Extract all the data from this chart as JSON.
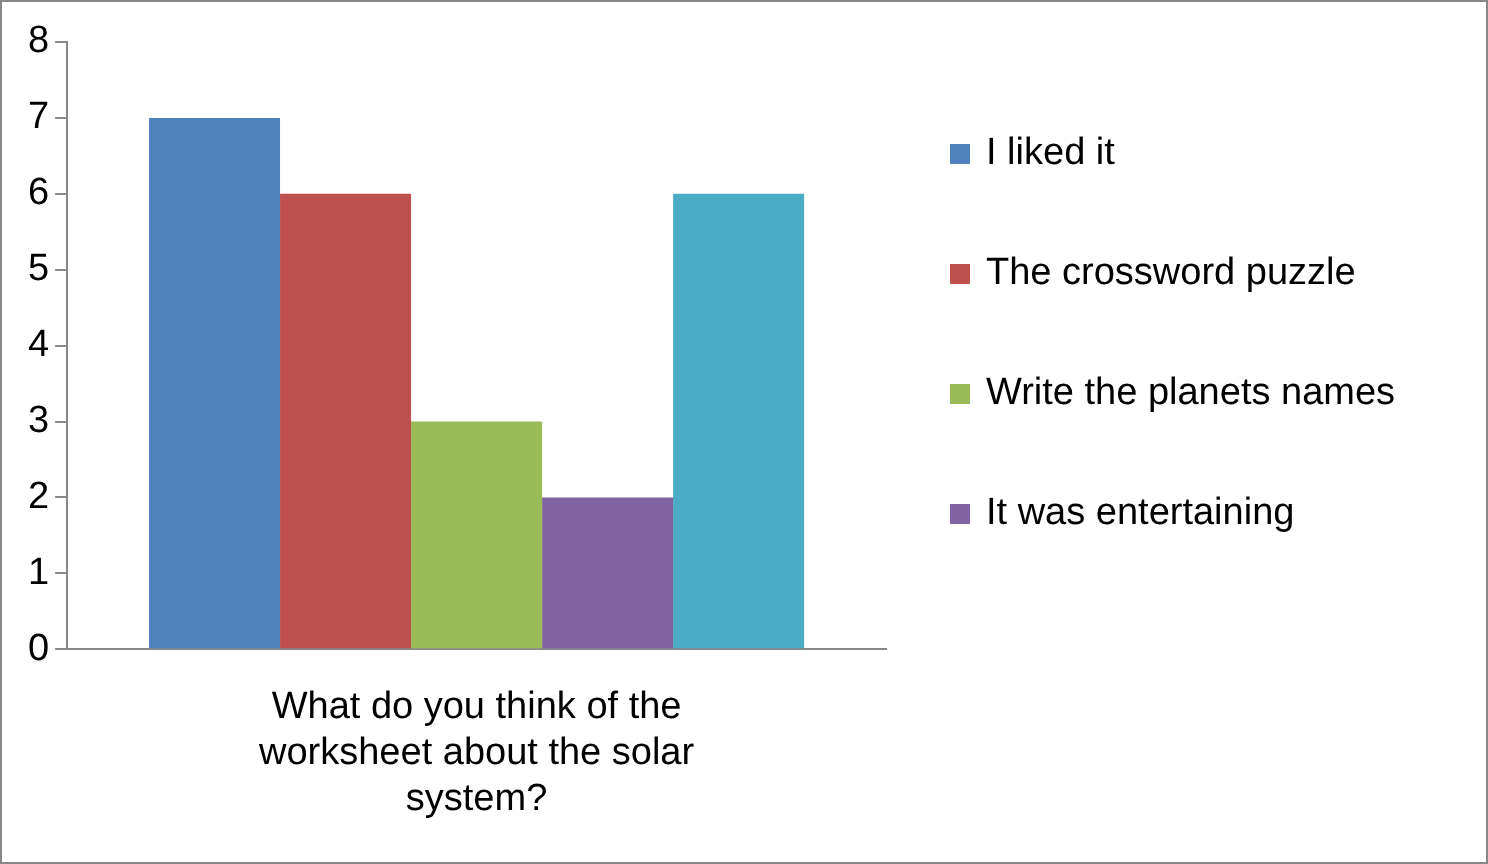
{
  "chart_data": {
    "type": "bar",
    "categories": [
      "What do you think of the worksheet about the solar system?"
    ],
    "series": [
      {
        "name": "I liked it",
        "color": "#4f81bd",
        "values": [
          7
        ]
      },
      {
        "name": "The crossword puzzle",
        "color": "#c0504d",
        "values": [
          6
        ]
      },
      {
        "name": "Write the planets names",
        "color": "#9bbb59",
        "values": [
          3
        ]
      },
      {
        "name": "It was entertaining",
        "color": "#8064a2",
        "values": [
          2
        ]
      },
      {
        "color": "#4bacc6",
        "values": [
          6
        ]
      }
    ],
    "ylim": [
      0,
      8
    ],
    "yticks": [
      0,
      1,
      2,
      3,
      4,
      5,
      6,
      7,
      8
    ],
    "grid": false,
    "legend": "right"
  }
}
